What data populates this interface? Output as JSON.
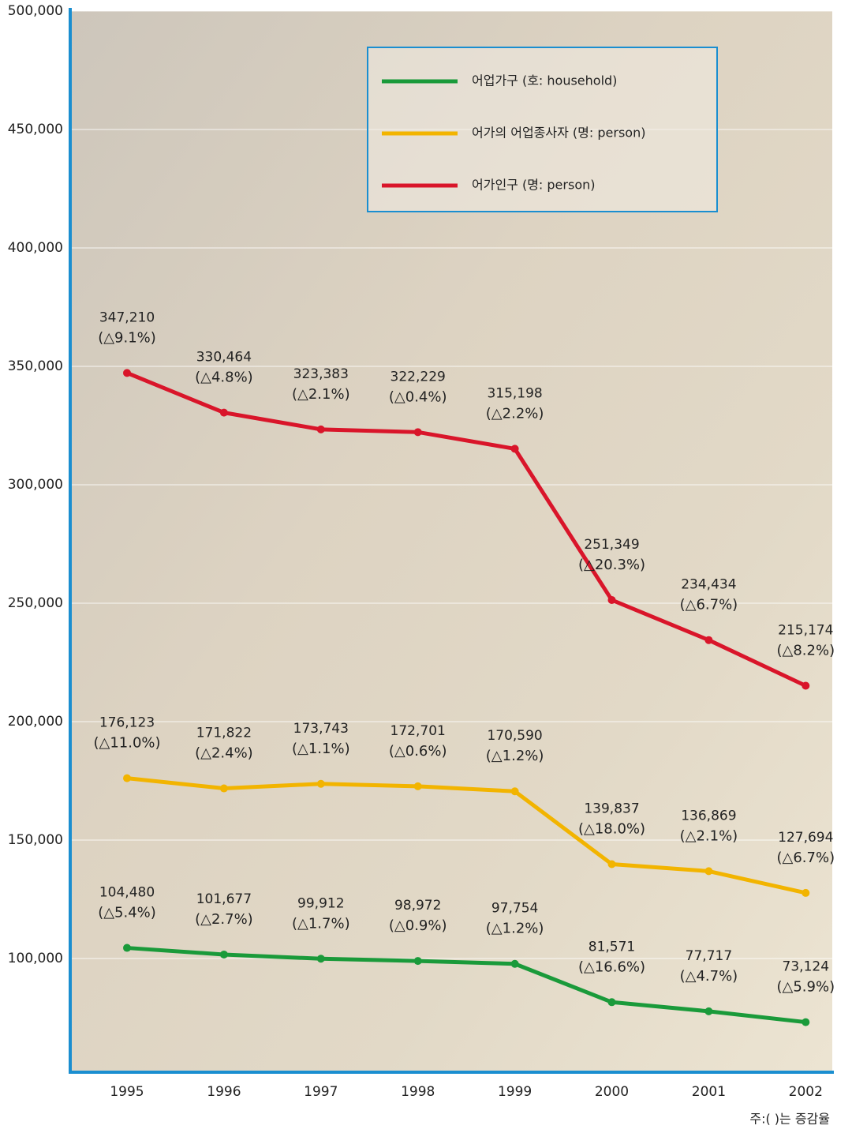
{
  "chart_data": {
    "type": "line",
    "categories": [
      "1995",
      "1996",
      "1997",
      "1998",
      "1999",
      "2000",
      "2001",
      "2002"
    ],
    "series": [
      {
        "name": "어업가구 (호: household)",
        "color": "#1a9a3a",
        "values": [
          104480,
          101677,
          99912,
          98972,
          97754,
          81571,
          77717,
          73124
        ],
        "value_labels": [
          "104,480",
          "101,677",
          "99,912",
          "98,972",
          "97,754",
          "81,571",
          "77,717",
          "73,124"
        ],
        "changes": [
          "(△5.4%)",
          "(△2.7%)",
          "(△1.7%)",
          "(△0.9%)",
          "(△1.2%)",
          "(△16.6%)",
          "(△4.7%)",
          "(△5.9%)"
        ]
      },
      {
        "name": "어가의 어업종사자 (명: person)",
        "color": "#f2b400",
        "values": [
          176123,
          171822,
          173743,
          172701,
          170590,
          139837,
          136869,
          127694
        ],
        "value_labels": [
          "176,123",
          "171,822",
          "173,743",
          "172,701",
          "170,590",
          "139,837",
          "136,869",
          "127,694"
        ],
        "changes": [
          "(△11.0%)",
          "(△2.4%)",
          "(△1.1%)",
          "(△0.6%)",
          "(△1.2%)",
          "(△18.0%)",
          "(△2.1%)",
          "(△6.7%)"
        ]
      },
      {
        "name": "어가인구 (명: person)",
        "color": "#d9152a",
        "values": [
          347210,
          330464,
          323383,
          322229,
          315198,
          251349,
          234434,
          215174
        ],
        "value_labels": [
          "347,210",
          "330,464",
          "323,383",
          "322,229",
          "315,198",
          "251,349",
          "234,434",
          "215,174"
        ],
        "changes": [
          "(△9.1%)",
          "(△4.8%)",
          "(△2.1%)",
          "(△0.4%)",
          "(△2.2%)",
          "(△20.3%)",
          "(△6.7%)",
          "(△8.2%)"
        ]
      }
    ],
    "ylim": [
      52000,
      500000
    ],
    "yticks": [
      {
        "value": 100000,
        "label": "100,000"
      },
      {
        "value": 150000,
        "label": "150,000"
      },
      {
        "value": 200000,
        "label": "200,000"
      },
      {
        "value": 250000,
        "label": "250,000"
      },
      {
        "value": 300000,
        "label": "300,000"
      },
      {
        "value": 350000,
        "label": "350,000"
      },
      {
        "value": 400000,
        "label": "400,000"
      },
      {
        "value": 450000,
        "label": "450,000"
      },
      {
        "value": 500000,
        "label": "500,000"
      }
    ],
    "grid": true,
    "legend": "top-right",
    "note": "주:(    )는 증감율"
  }
}
